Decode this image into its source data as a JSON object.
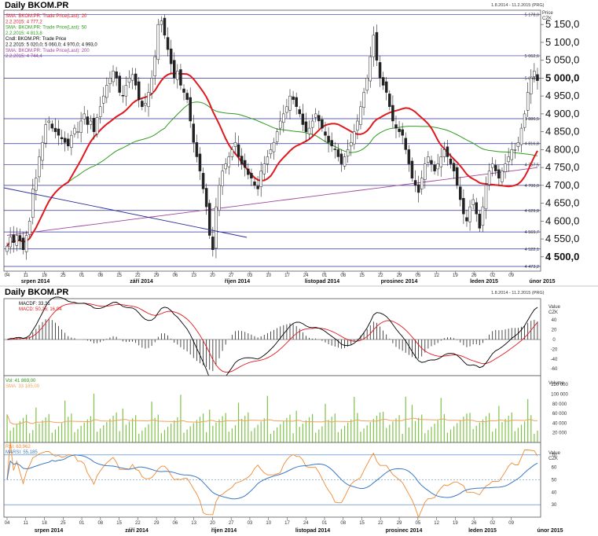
{
  "colors": {
    "sma20": "#e0191e",
    "sma50": "#2e9b1f",
    "sma200": "#a3459a",
    "trend": "#2b2f99",
    "macd": "#000000",
    "signal": "#e0191e",
    "volume": "#7fc24a",
    "volsma": "#f0a35a",
    "rsi": "#f08a30",
    "rsima": "#3b78c4",
    "hline": "#2b2f99"
  },
  "price_panel": {
    "title": "Daily BKOM.PR",
    "range": "1.8.2014 - 11.2.2015 (PRG)",
    "legend": [
      {
        "text": "SMA: BKOM.PR: Trade Price(Last): 20",
        "color": "#e0191e"
      },
      {
        "text": "2.2.2015: 4 777,2",
        "color": "#e0191e"
      },
      {
        "text": "SMA: BKOM.PR: Trade Price(Last): 50",
        "color": "#2e9b1f"
      },
      {
        "text": "2.2.2015: 4 813,8",
        "color": "#2e9b1f"
      },
      {
        "text": "Cndl: BKOM.PR: Trade Price",
        "color": "#000000"
      },
      {
        "text": "2.2.2015: 5 020,0; 5 060,0; 4 970,0; 4 993,0",
        "color": "#000000"
      },
      {
        "text": "SMA: BKOM.PR: Trade Price(Last): 200",
        "color": "#a3459a"
      },
      {
        "text": "2.2.2015: 4 744,4",
        "color": "#a3459a"
      }
    ],
    "unit_label_1": "Price",
    "unit_label_2": "CZK",
    "y_ticks": [
      "5 150,0",
      "5 100,0",
      "5 050,0",
      "5 000,0",
      "4 950,0",
      "4 900,0",
      "4 850,0",
      "4 800,0",
      "4 750,0",
      "4 700,0",
      "4 650,0",
      "4 600,0",
      "4 550,0",
      "4 500,0"
    ],
    "bold_ticks": [
      "5 000,0",
      "4 500,0"
    ],
    "level_labels": [
      "5 178,0",
      "5 062,6",
      "5 000,0",
      "4 886,5",
      "4 816,8",
      "4 757,5",
      "4 700,0",
      "4 629,8",
      "4 569,7",
      "4 522,1",
      "4 473,2"
    ]
  },
  "x_axis": {
    "days": [
      "04",
      "11",
      "18",
      "25",
      "01",
      "08",
      "15",
      "22",
      "29",
      "06",
      "13",
      "20",
      "27",
      "03",
      "10",
      "17",
      "24",
      "01",
      "08",
      "15",
      "22",
      "29",
      "05",
      "12",
      "19",
      "26",
      "02",
      "09"
    ],
    "months_top": [
      "srpen 2014",
      "září 2014",
      "říjen 2014",
      "listopad 2014",
      "prosinec 2014",
      "leden 2015",
      "únor 2015"
    ],
    "bottom_days": [
      "04",
      "11",
      "18",
      "25",
      "01",
      "08",
      "15",
      "22",
      "29",
      "06",
      "13",
      "20",
      "27",
      "03",
      "10",
      "17",
      "24",
      "01",
      "08",
      "15",
      "22",
      "29",
      "05",
      "12",
      "19",
      "26",
      "02",
      "09"
    ],
    "months_bottom": [
      "srpen 2014",
      "září 2014",
      "říjen 2014",
      "listopad 2014",
      "prosinec 2014",
      "leden 2015",
      "únor 2015"
    ]
  },
  "lower_panel": {
    "title": "Daily BKOM.PR",
    "range": "1.8.2014 - 11.2.2015 (PRG)"
  },
  "macd_panel": {
    "legend": [
      {
        "text": "MACDF: 33,31",
        "color": "#000000"
      },
      {
        "text": "MACD: 50,26; 16,94",
        "color": "#e0191e"
      }
    ],
    "unit_label_1": "Value",
    "unit_label_2": "CZK",
    "y_ticks": [
      "40",
      "20",
      "0",
      "-20",
      "-40",
      "-60"
    ]
  },
  "volume_panel": {
    "legend": [
      {
        "text": "Vol: 41 869,00",
        "color": "#2e9b1f"
      },
      {
        "text": "SMA: 33 185,00",
        "color": "#f0a35a"
      }
    ],
    "unit_label": "Volume",
    "y_ticks": [
      "120 000",
      "100 000",
      "80 000",
      "60 000",
      "40 000",
      "20 000"
    ]
  },
  "rsi_panel": {
    "legend": [
      {
        "text": "RSI: 63,962",
        "color": "#f08a30"
      },
      {
        "text": "MARSI: 55,185",
        "color": "#3b78c4"
      }
    ],
    "unit_label_1": "Value",
    "unit_label_2": "CZK",
    "y_ticks": [
      "70",
      "60",
      "50",
      "40",
      "30"
    ]
  },
  "chart_data": {
    "type": "candlestick",
    "title": "Daily BKOM.PR",
    "subtitle": "1.8.2014 - 11.2.2015 (PRG)",
    "ylabel": "Price CZK",
    "ylim": [
      4460,
      5190
    ],
    "horizontal_levels": [
      5178.0,
      5062.6,
      5000.0,
      4886.5,
      4816.8,
      4757.5,
      4700.0,
      4629.8,
      4569.7,
      4522.1,
      4473.2
    ],
    "close": [
      4530,
      4555,
      4540,
      4560,
      4545,
      4520,
      4560,
      4600,
      4690,
      4720,
      4780,
      4820,
      4870,
      4880,
      4860,
      4850,
      4840,
      4830,
      4820,
      4810,
      4840,
      4860,
      4850,
      4880,
      4900,
      4870,
      4880,
      4850,
      4890,
      4920,
      4950,
      4980,
      5000,
      5020,
      5000,
      4960,
      4950,
      4980,
      5000,
      5010,
      4980,
      4940,
      4920,
      4930,
      4960,
      5000,
      5060,
      5150,
      5160,
      5120,
      5080,
      5040,
      5000,
      5020,
      4980,
      4960,
      4940,
      4880,
      4820,
      4780,
      4740,
      4690,
      4640,
      4560,
      4520,
      4640,
      4700,
      4740,
      4760,
      4780,
      4800,
      4820,
      4780,
      4760,
      4750,
      4730,
      4720,
      4700,
      4690,
      4740,
      4760,
      4780,
      4800,
      4820,
      4850,
      4880,
      4900,
      4920,
      4950,
      4940,
      4920,
      4900,
      4870,
      4850,
      4860,
      4880,
      4900,
      4880,
      4860,
      4840,
      4820,
      4810,
      4800,
      4780,
      4760,
      4780,
      4800,
      4820,
      4850,
      4880,
      4920,
      4960,
      5000,
      5060,
      5120,
      5050,
      5000,
      4980,
      4960,
      4920,
      4880,
      4860,
      4850,
      4840,
      4800,
      4760,
      4720,
      4700,
      4680,
      4720,
      4760,
      4780,
      4760,
      4740,
      4760,
      4780,
      4800,
      4780,
      4760,
      4740,
      4700,
      4660,
      4620,
      4600,
      4640,
      4660,
      4620,
      4580,
      4640,
      4700,
      4740,
      4760,
      4740,
      4720,
      4740,
      4760,
      4780,
      4800,
      4800,
      4820,
      4860,
      4900,
      4960,
      5000,
      5020,
      4993
    ]
  }
}
